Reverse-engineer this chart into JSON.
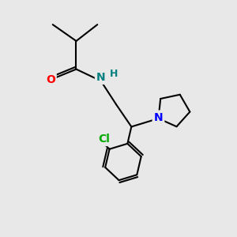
{
  "background_color": "#e8e8e8",
  "bond_color": "#000000",
  "bond_width": 1.5,
  "atom_colors": {
    "O": "#ff0000",
    "N_amide": "#008080",
    "H": "#008080",
    "N_pyrr": "#0000ff",
    "Cl": "#00aa00",
    "C": "#000000"
  },
  "font_size_atoms": 10,
  "figsize": [
    3.0,
    3.0
  ],
  "dpi": 100,
  "xlim": [
    0,
    10
  ],
  "ylim": [
    0,
    10
  ]
}
